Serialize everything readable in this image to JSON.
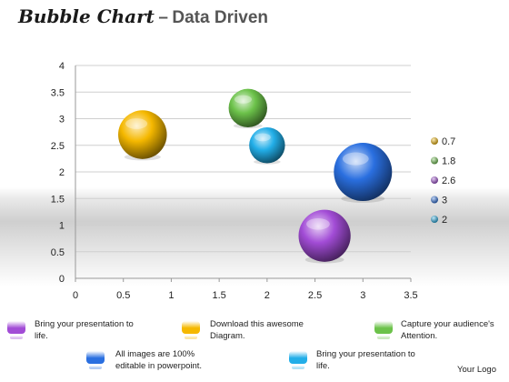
{
  "header": {
    "title_script": "Bubble Chart",
    "title_dash": "–",
    "title_sub": "Data Driven"
  },
  "chart_data": {
    "type": "scatter",
    "subtype": "bubble",
    "xlim": [
      0,
      3.5
    ],
    "ylim": [
      0,
      4
    ],
    "x_ticks": [
      "0",
      "0.5",
      "1",
      "1.5",
      "2",
      "2.5",
      "3",
      "3.5"
    ],
    "y_ticks": [
      "0",
      "0.5",
      "1",
      "1.5",
      "2",
      "2.5",
      "3",
      "3.5",
      "4"
    ],
    "grid": true,
    "legend_position": "right",
    "series": [
      {
        "name": "0.7",
        "x": 0.7,
        "y": 2.7,
        "size": 3.5,
        "color": "#f5b800"
      },
      {
        "name": "1.8",
        "x": 1.8,
        "y": 3.2,
        "size": 2.2,
        "color": "#6cc24a"
      },
      {
        "name": "2.6",
        "x": 2.6,
        "y": 0.8,
        "size": 4.0,
        "color": "#a24cd6"
      },
      {
        "name": "3",
        "x": 3.0,
        "y": 2.0,
        "size": 5.0,
        "color": "#2a6fe0"
      },
      {
        "name": "2",
        "x": 2.0,
        "y": 2.5,
        "size": 1.9,
        "color": "#22aee8"
      }
    ]
  },
  "notes": [
    {
      "text": "Bring your presentation to life.",
      "color": "#a24cd6"
    },
    {
      "text": "Download this awesome Diagram.",
      "color": "#f5b800"
    },
    {
      "text": "Capture your audience's Attention.",
      "color": "#6cc24a"
    },
    {
      "text": "All images are 100% editable in powerpoint.",
      "color": "#2a6fe0"
    },
    {
      "text": "Bring your presentation to life.",
      "color": "#22aee8"
    }
  ],
  "footer": {
    "logo": "Your Logo"
  }
}
